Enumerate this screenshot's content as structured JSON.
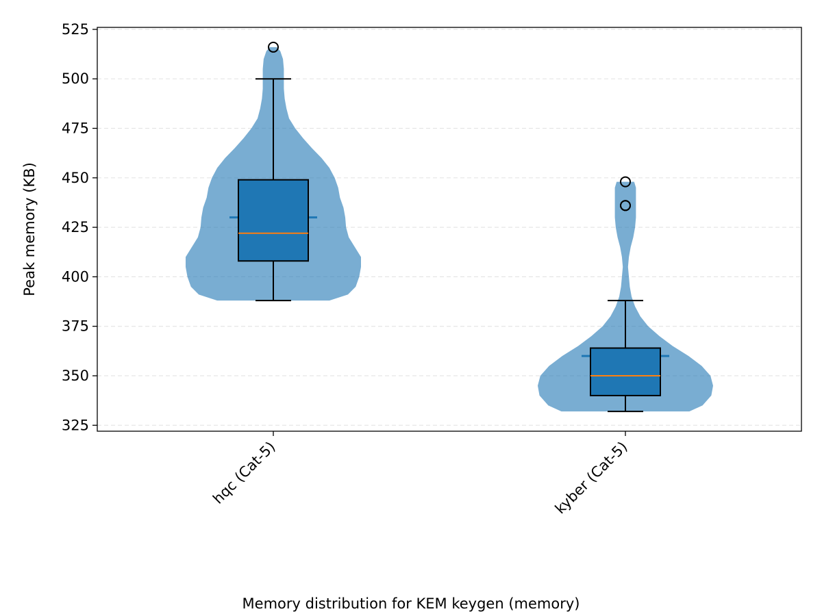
{
  "chart_data": {
    "type": "violin",
    "title": "",
    "xlabel": "Memory distribution for KEM keygen (memory)",
    "ylabel": "Peak memory (KB)",
    "ylim": [
      322,
      526
    ],
    "yticks": [
      325,
      350,
      375,
      400,
      425,
      450,
      475,
      500,
      525
    ],
    "grid": "y-dashed",
    "legend": "none",
    "colors": {
      "violin": "#1f77b4",
      "box": "#1f77b4",
      "median": "#ff7f0e",
      "whisker": "#000000",
      "grid": "#e5e5e5"
    },
    "categories": [
      "hqc (Cat-5)",
      "kyber (Cat-5)"
    ],
    "series": [
      {
        "category": "hqc (Cat-5)",
        "min": 388,
        "q1": 408,
        "median": 422,
        "q3": 449,
        "whisker_high": 500,
        "mean": 430,
        "violin_max": 516,
        "outliers": [
          516
        ],
        "density": [
          [
            388,
            0.64
          ],
          [
            391,
            0.85
          ],
          [
            395,
            0.94
          ],
          [
            400,
            0.98
          ],
          [
            405,
            1.0
          ],
          [
            410,
            1.0
          ],
          [
            415,
            0.93
          ],
          [
            420,
            0.86
          ],
          [
            425,
            0.83
          ],
          [
            430,
            0.82
          ],
          [
            435,
            0.8
          ],
          [
            440,
            0.76
          ],
          [
            445,
            0.74
          ],
          [
            450,
            0.7
          ],
          [
            455,
            0.64
          ],
          [
            460,
            0.55
          ],
          [
            465,
            0.44
          ],
          [
            470,
            0.34
          ],
          [
            475,
            0.25
          ],
          [
            480,
            0.18
          ],
          [
            485,
            0.15
          ],
          [
            490,
            0.13
          ],
          [
            495,
            0.12
          ],
          [
            500,
            0.12
          ],
          [
            505,
            0.12
          ],
          [
            510,
            0.11
          ],
          [
            514,
            0.08
          ],
          [
            516,
            0.04
          ]
        ]
      },
      {
        "category": "kyber (Cat-5)",
        "min": 332,
        "q1": 340,
        "median": 350,
        "q3": 364,
        "whisker_high": 388,
        "mean": 360,
        "violin_max": 448,
        "outliers": [
          436,
          436,
          448
        ],
        "density": [
          [
            332,
            0.73
          ],
          [
            335,
            0.88
          ],
          [
            340,
            0.98
          ],
          [
            345,
            1.0
          ],
          [
            350,
            0.97
          ],
          [
            355,
            0.87
          ],
          [
            360,
            0.72
          ],
          [
            365,
            0.54
          ],
          [
            370,
            0.39
          ],
          [
            375,
            0.26
          ],
          [
            380,
            0.17
          ],
          [
            385,
            0.11
          ],
          [
            390,
            0.07
          ],
          [
            395,
            0.05
          ],
          [
            400,
            0.04
          ],
          [
            405,
            0.03
          ],
          [
            410,
            0.04
          ],
          [
            415,
            0.06
          ],
          [
            420,
            0.09
          ],
          [
            425,
            0.11
          ],
          [
            430,
            0.12
          ],
          [
            435,
            0.12
          ],
          [
            440,
            0.12
          ],
          [
            445,
            0.12
          ],
          [
            448,
            0.1
          ]
        ]
      }
    ]
  }
}
